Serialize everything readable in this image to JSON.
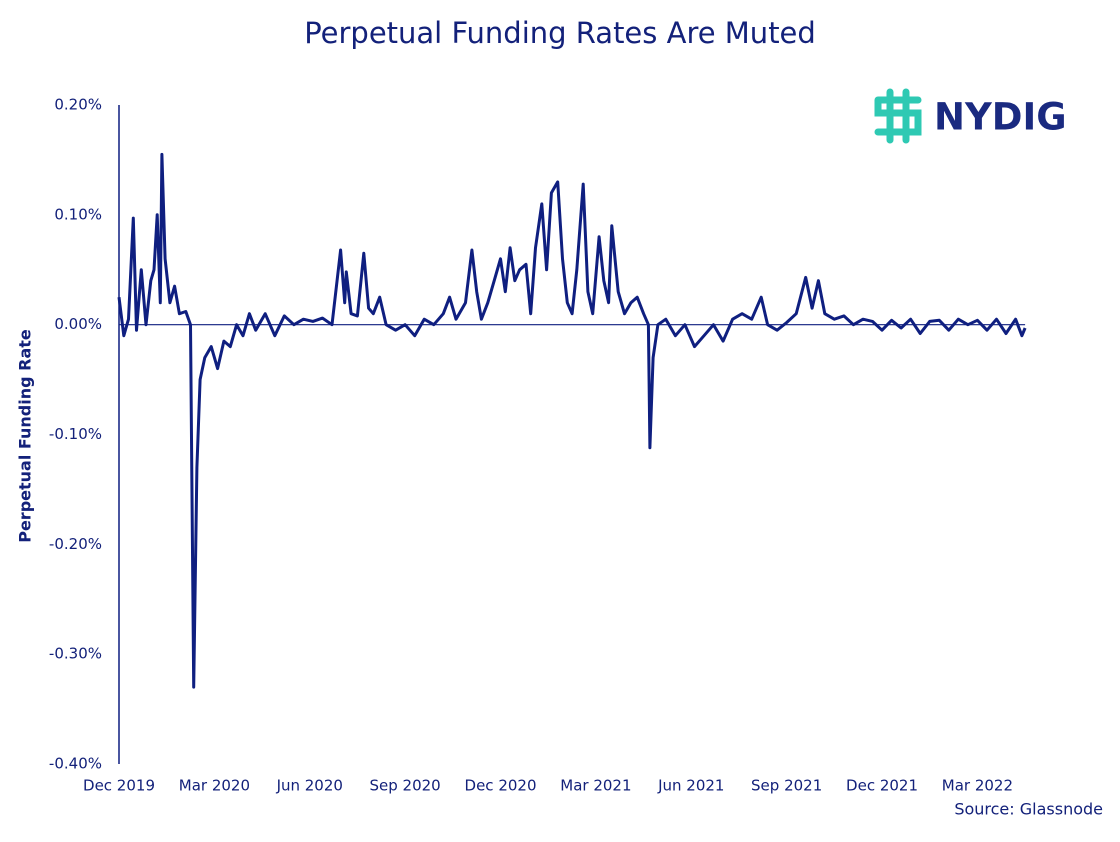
{
  "chart_data": {
    "type": "line",
    "title": "Perpetual Funding Rates Are Muted",
    "ylabel": "Perpetual Funding Rate",
    "source": "Source: Glassnode",
    "logo": "NYDIG",
    "color": "#0f1f80",
    "zero_line": true,
    "xlim": [
      0,
      29
    ],
    "ylim": [
      -0.4,
      0.2
    ],
    "xticks": [
      {
        "value": 0,
        "label": "Dec 2019"
      },
      {
        "value": 3,
        "label": "Mar 2020"
      },
      {
        "value": 6,
        "label": "Jun 2020"
      },
      {
        "value": 9,
        "label": "Sep 2020"
      },
      {
        "value": 12,
        "label": "Dec 2020"
      },
      {
        "value": 15,
        "label": "Mar 2021"
      },
      {
        "value": 18,
        "label": "Jun 2021"
      },
      {
        "value": 21,
        "label": "Sep 2021"
      },
      {
        "value": 24,
        "label": "Dec 2021"
      },
      {
        "value": 27,
        "label": "Mar 2022"
      }
    ],
    "yticks": [
      {
        "value": 0.2,
        "label": "0.20%"
      },
      {
        "value": 0.1,
        "label": "0.10%"
      },
      {
        "value": 0,
        "label": "0.00%"
      },
      {
        "value": -0.1,
        "label": "-0.10%"
      },
      {
        "value": -0.2,
        "label": "-0.20%"
      },
      {
        "value": -0.3,
        "label": "-0.30%"
      },
      {
        "value": -0.4,
        "label": "-0.40%"
      }
    ],
    "x": [
      0,
      0.15,
      0.3,
      0.45,
      0.55,
      0.7,
      0.85,
      1.0,
      1.1,
      1.2,
      1.3,
      1.35,
      1.45,
      1.6,
      1.75,
      1.9,
      2.1,
      2.25,
      2.35,
      2.45,
      2.55,
      2.7,
      2.9,
      3.1,
      3.3,
      3.5,
      3.7,
      3.9,
      4.1,
      4.3,
      4.6,
      4.9,
      5.2,
      5.5,
      5.8,
      6.1,
      6.4,
      6.7,
      6.97,
      7.1,
      7.15,
      7.3,
      7.5,
      7.7,
      7.85,
      8.0,
      8.2,
      8.4,
      8.7,
      9.0,
      9.3,
      9.6,
      9.9,
      10.2,
      10.4,
      10.6,
      10.9,
      11.1,
      11.25,
      11.4,
      11.6,
      11.8,
      12.0,
      12.15,
      12.3,
      12.45,
      12.6,
      12.8,
      12.95,
      13.1,
      13.3,
      13.45,
      13.6,
      13.8,
      13.95,
      14.1,
      14.25,
      14.4,
      14.6,
      14.75,
      14.9,
      15.1,
      15.25,
      15.4,
      15.5,
      15.7,
      15.9,
      16.1,
      16.3,
      16.5,
      16.65,
      16.7,
      16.8,
      16.95,
      17.2,
      17.5,
      17.8,
      18.1,
      18.4,
      18.7,
      19.0,
      19.3,
      19.6,
      19.9,
      20.2,
      20.4,
      20.7,
      21.0,
      21.3,
      21.6,
      21.8,
      22.0,
      22.2,
      22.5,
      22.8,
      23.1,
      23.4,
      23.7,
      24.0,
      24.3,
      24.6,
      24.9,
      25.2,
      25.5,
      25.8,
      26.1,
      26.4,
      26.7,
      27.0,
      27.3,
      27.6,
      27.9,
      28.2,
      28.4,
      28.5
    ],
    "values": [
      0.025,
      -0.01,
      0.005,
      0.097,
      -0.005,
      0.05,
      0.0,
      0.04,
      0.05,
      0.1,
      0.02,
      0.155,
      0.06,
      0.02,
      0.035,
      0.01,
      0.012,
      0.0,
      -0.33,
      -0.13,
      -0.05,
      -0.03,
      -0.02,
      -0.04,
      -0.015,
      -0.02,
      0.0,
      -0.01,
      0.01,
      -0.005,
      0.01,
      -0.01,
      0.008,
      0.0,
      0.005,
      0.003,
      0.006,
      0.0,
      0.068,
      0.02,
      0.048,
      0.01,
      0.008,
      0.065,
      0.015,
      0.01,
      0.025,
      0.0,
      -0.005,
      0.0,
      -0.01,
      0.005,
      0.0,
      0.01,
      0.025,
      0.005,
      0.02,
      0.068,
      0.03,
      0.005,
      0.02,
      0.04,
      0.06,
      0.03,
      0.07,
      0.04,
      0.05,
      0.055,
      0.01,
      0.07,
      0.11,
      0.05,
      0.12,
      0.13,
      0.06,
      0.02,
      0.01,
      0.05,
      0.128,
      0.03,
      0.01,
      0.08,
      0.04,
      0.02,
      0.09,
      0.03,
      0.01,
      0.02,
      0.025,
      0.01,
      0.0,
      -0.112,
      -0.03,
      0.0,
      0.005,
      -0.01,
      0.0,
      -0.02,
      -0.01,
      0.0,
      -0.015,
      0.005,
      0.01,
      0.005,
      0.025,
      0.0,
      -0.005,
      0.002,
      0.01,
      0.043,
      0.015,
      0.04,
      0.01,
      0.005,
      0.008,
      0.0,
      0.005,
      0.003,
      -0.005,
      0.004,
      -0.003,
      0.005,
      -0.008,
      0.003,
      0.004,
      -0.005,
      0.005,
      0.0,
      0.004,
      -0.005,
      0.005,
      -0.008,
      0.005,
      -0.01,
      -0.003
    ]
  }
}
